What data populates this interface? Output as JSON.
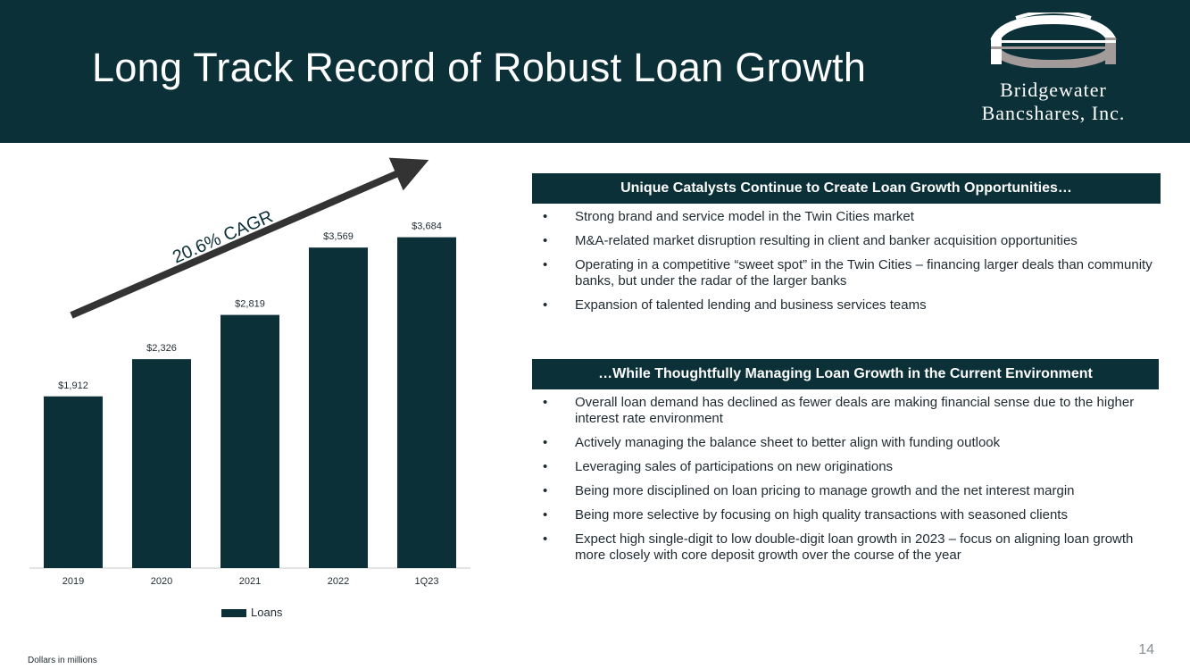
{
  "slide": {
    "title": "Long Track Record of Robust Loan Growth",
    "page_number": "14",
    "footnote": "Dollars in millions"
  },
  "logo": {
    "line1": "Bridgewater",
    "line2": "Bancshares, Inc.",
    "mark_icon": "bridge-arch-icon"
  },
  "colors": {
    "header_bg": "#0b3038",
    "bar": "#0b3038",
    "arrow": "#333333",
    "text": "#1f2a30",
    "page_number": "#8a8f93"
  },
  "chart_data": {
    "type": "bar",
    "categories": [
      "2019",
      "2020",
      "2021",
      "2022",
      "1Q23"
    ],
    "series": [
      {
        "name": "Loans",
        "values": [
          1912,
          2326,
          2819,
          3569,
          3684
        ]
      }
    ],
    "data_labels": [
      "$1,912",
      "$2,326",
      "$2,819",
      "$3,569",
      "$3,684"
    ],
    "annotation": "20.6% CAGR",
    "ylim": [
      0,
      3700
    ],
    "legend": "bottom-center",
    "grid": false
  },
  "catalysts": {
    "heading": "Unique Catalysts Continue to Create Loan Growth Opportunities…",
    "items": [
      "Strong brand and service model in the Twin Cities market",
      "M&A-related market disruption resulting in client and banker acquisition opportunities",
      "Operating in a competitive “sweet spot” in the Twin Cities – financing larger deals than community banks, but under the radar of the larger banks",
      "Expansion of talented lending and business services teams"
    ]
  },
  "managing": {
    "heading": "…While Thoughtfully Managing Loan Growth in the Current Environment",
    "items": [
      "Overall loan demand has declined as fewer deals are making financial sense due to the higher interest rate environment",
      "Actively managing the balance sheet to better align with funding outlook",
      "Leveraging sales of participations on new originations",
      "Being more disciplined on loan pricing to manage growth and the net interest margin",
      "Being more selective by focusing on high quality transactions with seasoned clients",
      "Expect high single-digit to low double-digit loan growth in 2023 – focus on aligning loan growth more closely with core deposit growth over the course of the year"
    ]
  }
}
